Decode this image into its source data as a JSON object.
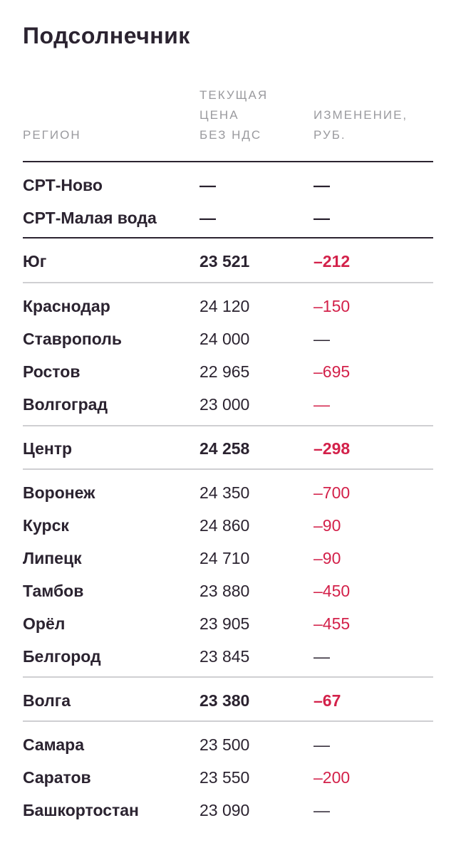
{
  "title": "Подсолнечник",
  "header": {
    "region": "РЕГИОН",
    "price": "ТЕКУЩАЯ ЦЕНА БЕЗ НДС",
    "change": "ИЗМЕНЕНИЕ, РУБ."
  },
  "rows": [
    {
      "region": "СРТ-Ново",
      "price": "—",
      "change": "—"
    },
    {
      "region": "СРТ-Малая вода",
      "price": "—",
      "change": "—"
    },
    {
      "region": "Юг",
      "price": "23 521",
      "change": "–212"
    },
    {
      "region": "Краснодар",
      "price": "24 120",
      "change": "–150"
    },
    {
      "region": "Ставрополь",
      "price": "24 000",
      "change": "—"
    },
    {
      "region": "Ростов",
      "price": "22 965",
      "change": "–695"
    },
    {
      "region": "Волгоград",
      "price": "23 000",
      "change": "—"
    },
    {
      "region": "Центр",
      "price": "24 258",
      "change": "–298"
    },
    {
      "region": "Воронеж",
      "price": "24 350",
      "change": "–700"
    },
    {
      "region": "Курск",
      "price": "24 860",
      "change": "–90"
    },
    {
      "region": "Липецк",
      "price": "24 710",
      "change": "–90"
    },
    {
      "region": "Тамбов",
      "price": "23 880",
      "change": "–450"
    },
    {
      "region": "Орёл",
      "price": "23 905",
      "change": "–455"
    },
    {
      "region": "Белгород",
      "price": "23 845",
      "change": "—"
    },
    {
      "region": "Волга",
      "price": "23 380",
      "change": "–67"
    },
    {
      "region": "Самара",
      "price": "23 500",
      "change": "—"
    },
    {
      "region": "Саратов",
      "price": "23 550",
      "change": "–200"
    },
    {
      "region": "Башкортостан",
      "price": "23 090",
      "change": "—"
    }
  ],
  "colors": {
    "text": "#2b2330",
    "muted": "#9a9a9e",
    "negative": "#d3214a",
    "rule_dark": "#2b2330",
    "rule_light": "#cfcfd2"
  }
}
